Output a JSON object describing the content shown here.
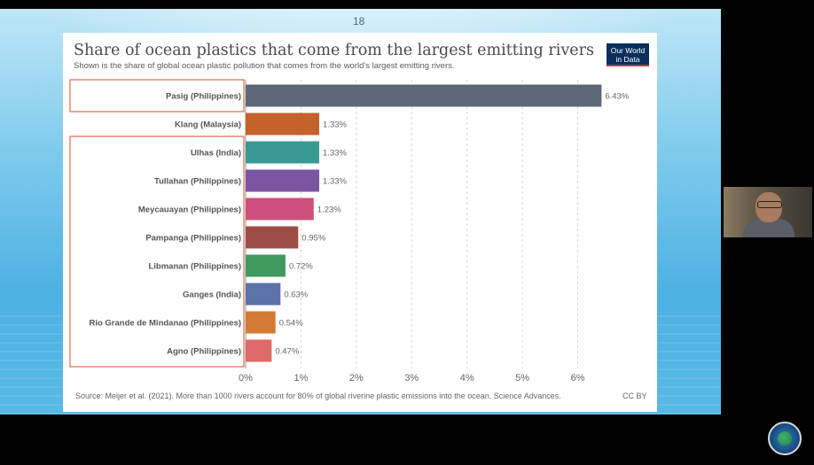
{
  "slide": {
    "number": "18"
  },
  "logo": {
    "line1": "Our World",
    "line2": "in Data"
  },
  "chart_data": {
    "type": "bar",
    "orientation": "horizontal",
    "title": "Share of ocean plastics that come from the largest emitting rivers",
    "subtitle": "Shown is the share of global ocean plastic pollution that comes from the world's largest emitting rivers.",
    "categories": [
      "Pasig (Philippines)",
      "Klang (Malaysia)",
      "Ulhas (India)",
      "Tullahan (Philippines)",
      "Meycauayan (Philippines)",
      "Pampanga (Philippines)",
      "Libmanan (Philippines)",
      "Ganges (India)",
      "Rio Grande de Mindanao (Philippines)",
      "Agno (Philippines)"
    ],
    "values": [
      6.43,
      1.33,
      1.33,
      1.33,
      1.23,
      0.95,
      0.72,
      0.63,
      0.54,
      0.47
    ],
    "value_labels": [
      "6.43%",
      "1.33%",
      "1.33%",
      "1.33%",
      "1.23%",
      "0.95%",
      "0.72%",
      "0.63%",
      "0.54%",
      "0.47%"
    ],
    "colors": [
      "#5d6877",
      "#c4622c",
      "#3a9a92",
      "#7c55a2",
      "#cf4f7c",
      "#9b4d45",
      "#3f9a5f",
      "#5b73a8",
      "#d37a37",
      "#dd6a6a"
    ],
    "xlim": [
      0,
      6.6
    ],
    "xticks": [
      0,
      1,
      2,
      3,
      4,
      5,
      6
    ],
    "xtick_labels": [
      "0%",
      "1%",
      "2%",
      "3%",
      "4%",
      "5%",
      "6%"
    ],
    "grid": "vertical dotted",
    "highlight_groups": [
      {
        "rows": [
          0,
          0
        ],
        "color": "#e06a4e"
      },
      {
        "rows": [
          2,
          9
        ],
        "color": "#e06a4e"
      }
    ],
    "source": "Source: Meijer et al. (2021). More than 1000 rivers account for 80% of global riverine plastic emissions into the ocean. Science Advances.",
    "license": "CC BY"
  }
}
